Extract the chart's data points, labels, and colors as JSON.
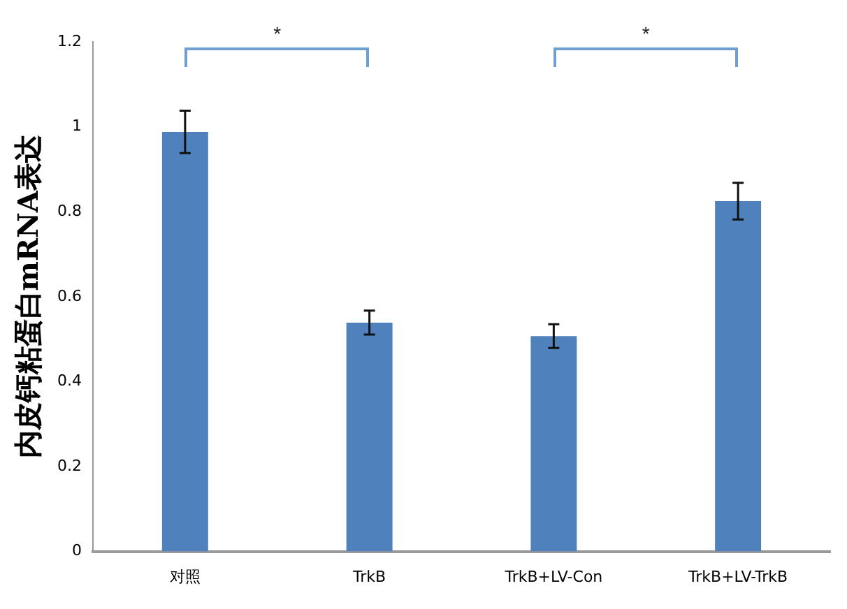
{
  "chart_data": {
    "type": "bar",
    "ylabel": "内皮钙粘蛋白mRNA表达",
    "categories": [
      "对照",
      "TrkB",
      "TrkB+LV-Con",
      "TrkB+LV-TrkB"
    ],
    "values": [
      0.988,
      0.539,
      0.507,
      0.825
    ],
    "errors": [
      0.05,
      0.028,
      0.028,
      0.043
    ],
    "color": "#4f81bd",
    "ylim": [
      0,
      1.2
    ],
    "yticks": [
      0,
      0.2,
      0.4,
      0.6,
      0.8,
      1,
      1.2
    ],
    "grid": false,
    "legend": false,
    "annotations": [
      "*",
      "*"
    ]
  }
}
